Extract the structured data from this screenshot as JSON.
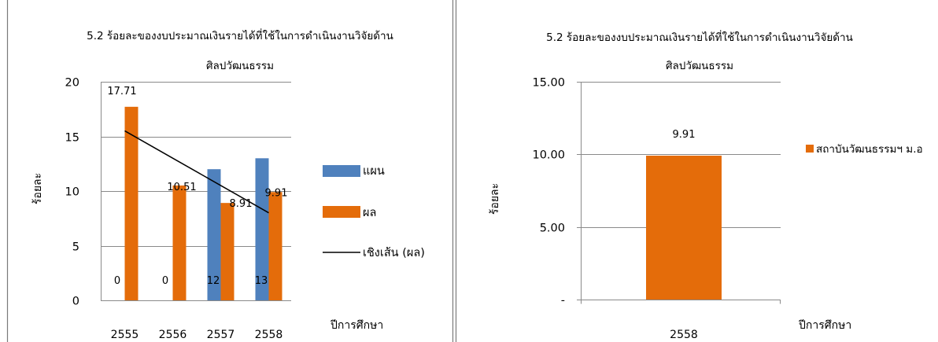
{
  "chart_data": [
    {
      "type": "bar",
      "title": [
        "5.2 ร้อยละของงบประมาณเงินรายได้ที่ใช้ในการดำเนินงานวิจัยด้าน",
        "ศิลปวัฒนธรรม"
      ],
      "xlabel": "ปีการศึกษา",
      "ylabel": "ร้อยละ",
      "categories": [
        "2555",
        "2556",
        "2557",
        "2558"
      ],
      "ylim": [
        0,
        20
      ],
      "yticks": [
        0,
        5,
        10,
        15,
        20
      ],
      "ytick_labels": [
        "0",
        "5",
        "10",
        "15",
        "20"
      ],
      "grid": true,
      "legend": "right",
      "series": [
        {
          "name": "แผน",
          "type": "bar",
          "color": "#4F81BD",
          "values": [
            0,
            0,
            12,
            13
          ],
          "data_labels": [
            "0",
            "0",
            "12",
            "13"
          ]
        },
        {
          "name": "ผล",
          "type": "bar",
          "color": "#E46C0A",
          "values": [
            17.71,
            10.51,
            8.91,
            9.91
          ],
          "data_labels": [
            "17.71",
            "10.51",
            "8.91",
            "9.91"
          ]
        },
        {
          "name": "เชิงเส้น (ผล)",
          "type": "line",
          "color": "#000000",
          "values": [
            15.51,
            13.01,
            10.51,
            8.01
          ]
        }
      ]
    },
    {
      "type": "bar",
      "title": [
        "5.2 ร้อยละของงบประมาณเงินรายได้ที่ใช้ในการดำเนินงานวิจัยด้าน",
        "ศิลปวัฒนธรรม"
      ],
      "xlabel": "ปีการศึกษา",
      "ylabel": "ร้อยละ",
      "categories": [
        "2558"
      ],
      "ylim": [
        0,
        15
      ],
      "yticks": [
        0,
        5,
        10,
        15
      ],
      "ytick_labels": [
        "-",
        "5.00",
        "10.00",
        "15.00"
      ],
      "grid": true,
      "legend": "right",
      "series": [
        {
          "name": "สถาบันวัฒนธรรมฯ ม.อ",
          "type": "bar",
          "color": "#E46C0A",
          "values": [
            9.91
          ],
          "data_labels": [
            "9.91"
          ]
        }
      ]
    }
  ]
}
